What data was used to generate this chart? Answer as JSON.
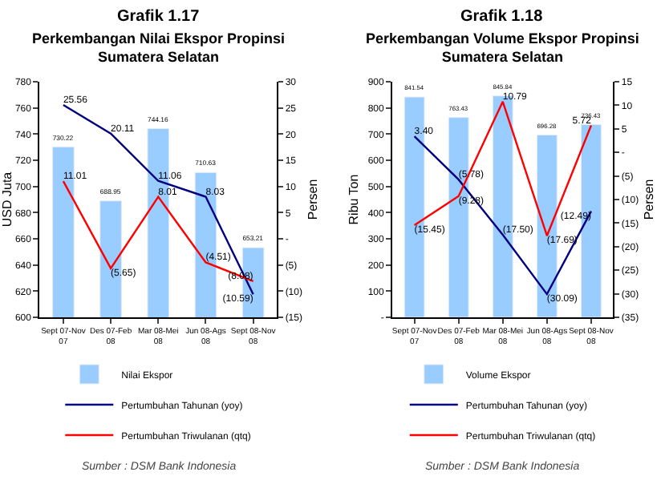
{
  "chart_data": [
    {
      "type": "bar",
      "title": "Grafik 1.17",
      "subtitle": "Perkembangan Nilai Ekspor Propinsi Sumatera Selatan",
      "ylabel": "USD Juta",
      "y2label": "Persen",
      "categories": [
        "Sept 07-Nov 07",
        "Des 07-Feb 08",
        "Mar 08-Mei 08",
        "Jun 08-Ags 08",
        "Sept 08-Nov 08"
      ],
      "series": [
        {
          "name": "Nilai Ekspor",
          "color": "#99ccff",
          "values": [
            730.22,
            688.95,
            744.16,
            710.63,
            653.21
          ],
          "value_labels": [
            "730.22",
            "688.95",
            "744.16",
            "710.63",
            "653.21"
          ]
        },
        {
          "name": "Pertumbuhan Tahunan (yoy)",
          "type": "line",
          "axis": "y2",
          "color": "#000080",
          "values": [
            25.56,
            20.11,
            11.06,
            8.03,
            -10.59
          ],
          "value_labels": [
            "25.56",
            "20.11",
            "11.06",
            "8.03",
            "(10.59)"
          ]
        },
        {
          "name": "Pertumbuhan Triwulanan (qtq)",
          "type": "line",
          "axis": "y2",
          "color": "#ff0000",
          "values": [
            11.01,
            -5.65,
            8.01,
            -4.51,
            -8.08
          ],
          "value_labels": [
            "11.01",
            "(5.65)",
            "8.01",
            "(4.51)",
            "(8.08)"
          ]
        }
      ],
      "ylim": [
        600,
        780
      ],
      "yticks": [
        600,
        620,
        640,
        660,
        680,
        700,
        720,
        740,
        760,
        780
      ],
      "y2lim": [
        -15,
        30
      ],
      "y2ticks": [
        {
          "value": -15,
          "label": "(15)"
        },
        {
          "value": -10,
          "label": "(10)"
        },
        {
          "value": -5,
          "label": "(5)"
        },
        {
          "value": 0,
          "label": "-"
        },
        5,
        10,
        15,
        20,
        25,
        30
      ],
      "legend": "bottom",
      "marker": "none",
      "line_style": "solid",
      "annotations": [
        "Sumber : DSM Bank Indonesia"
      ]
    },
    {
      "type": "bar",
      "title": "Grafik 1.18",
      "subtitle": "Perkembangan Volume Ekspor Propinsi Sumatera Selatan",
      "ylabel": "Ribu Ton",
      "y2label": "Persen",
      "categories": [
        "Sept 07-Nov 07",
        "Des 07-Feb 08",
        "Mar 08-Mei 08",
        "Jun 08-Ags 08",
        "Sept 08-Nov 08"
      ],
      "series": [
        {
          "name": "Volume Ekspor",
          "color": "#99ccff",
          "values": [
            841.54,
            763.43,
            845.84,
            696.28,
            736.43
          ],
          "value_labels": [
            "841.54",
            "763.43",
            "845.84",
            "696.28",
            "736.43"
          ]
        },
        {
          "name": "Pertumbuhan Tahunan (yoy)",
          "type": "line",
          "axis": "y2",
          "color": "#000080",
          "values": [
            3.4,
            -5.78,
            -17.5,
            -30.09,
            -12.49
          ],
          "value_labels": [
            "3.40",
            "(5.78)",
            "(17.50)",
            "(30.09)",
            "(12.49)"
          ]
        },
        {
          "name": "Pertumbuhan Triwulanan (qtq)",
          "type": "line",
          "axis": "y2",
          "color": "#ff0000",
          "values": [
            -15.45,
            -9.28,
            10.79,
            -17.69,
            5.72
          ],
          "value_labels": [
            "(15.45)",
            "(9.28)",
            "10.79",
            "(17.69)",
            "5.72"
          ]
        }
      ],
      "ylim": [
        0,
        900
      ],
      "yticks": [
        {
          "value": 0,
          "label": "-"
        },
        100,
        200,
        300,
        400,
        500,
        600,
        700,
        800,
        900
      ],
      "y2lim": [
        -35,
        15
      ],
      "y2ticks": [
        {
          "value": -35,
          "label": "(35)"
        },
        {
          "value": -30,
          "label": "(30)"
        },
        {
          "value": -25,
          "label": "(25)"
        },
        {
          "value": -20,
          "label": "(20)"
        },
        {
          "value": -15,
          "label": "(15)"
        },
        {
          "value": -10,
          "label": "(10)"
        },
        {
          "value": -5,
          "label": "(5)"
        },
        {
          "value": 0,
          "label": "-"
        },
        5,
        10,
        15
      ],
      "legend": "bottom",
      "marker": "none",
      "line_style": "solid",
      "annotations": [
        "Sumber : DSM Bank Indonesia"
      ]
    }
  ]
}
